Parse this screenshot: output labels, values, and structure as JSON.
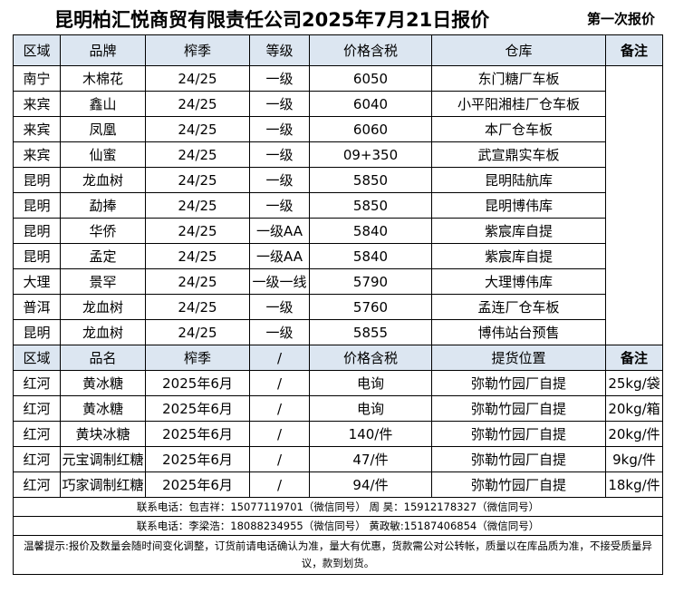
{
  "header": {
    "title": "昆明柏汇悦商贸有限责任公司2025年7月21日报价",
    "subtitle": "第一次报价"
  },
  "table1": {
    "columns": [
      "区域",
      "品牌",
      "榨季",
      "等级",
      "价格含税",
      "仓库",
      "备注"
    ],
    "rows": [
      [
        "南宁",
        "木棉花",
        "24/25",
        "一级",
        "6050",
        "东门糖厂车板"
      ],
      [
        "来宾",
        "鑫山",
        "24/25",
        "一级",
        "6040",
        "小平阳湘桂厂仓车板"
      ],
      [
        "来宾",
        "凤凰",
        "24/25",
        "一级",
        "6060",
        "本厂仓车板"
      ],
      [
        "来宾",
        "仙蜜",
        "24/25",
        "一级",
        "09+350",
        "武宣鼎实车板"
      ],
      [
        "昆明",
        "龙血树",
        "24/25",
        "一级",
        "5850",
        "昆明陆航库"
      ],
      [
        "昆明",
        "勐捧",
        "24/25",
        "一级",
        "5850",
        "昆明博伟库"
      ],
      [
        "昆明",
        "华侨",
        "24/25",
        "一级AA",
        "5840",
        "紫宸库自提"
      ],
      [
        "昆明",
        "孟定",
        "24/25",
        "一级AA",
        "5840",
        "紫宸库自提"
      ],
      [
        "大理",
        "景罕",
        "24/25",
        "一级一线",
        "5790",
        "大理博伟库"
      ],
      [
        "普洱",
        "龙血树",
        "24/25",
        "一级",
        "5760",
        "孟连厂仓车板"
      ],
      [
        "昆明",
        "龙血树",
        "24/25",
        "一级",
        "5855",
        "博伟站台预售"
      ]
    ]
  },
  "table2": {
    "columns": [
      "区域",
      "品名",
      "榨季",
      "/",
      "价格含税",
      "提货位置",
      "备注"
    ],
    "rows": [
      [
        "红河",
        "黄冰糖",
        "2025年6月",
        "/",
        "电询",
        "弥勒竹园厂自提",
        "25kg/袋"
      ],
      [
        "红河",
        "黄冰糖",
        "2025年6月",
        "/",
        "电询",
        "弥勒竹园厂自提",
        "20kg/箱"
      ],
      [
        "红河",
        "黄块冰糖",
        "2025年6月",
        "/",
        "140/件",
        "弥勒竹园厂自提",
        "20kg/件"
      ],
      [
        "红河",
        "元宝调制红糖",
        "2025年6月",
        "/",
        "47/件",
        "弥勒竹园厂自提",
        "9kg/件"
      ],
      [
        "红河",
        "巧家调制红糖",
        "2025年6月",
        "/",
        "94/件",
        "弥勒竹园厂自提",
        "18kg/件"
      ]
    ]
  },
  "contacts": [
    "联系电话：包吉祥：15077119701（微信同号）   周 昊：15912178327（微信同号）",
    "联系电话：李梁浩：18088234955（微信同号）   黄政敏:15187406854（微信同号）"
  ],
  "notice": "温馨提示:报价及数量会随时间变化调整，订货前请电话确认为准，量大有优惠，货款需公对公转帐，质量以在库品质为准，不接受质量异议，款到划货。"
}
